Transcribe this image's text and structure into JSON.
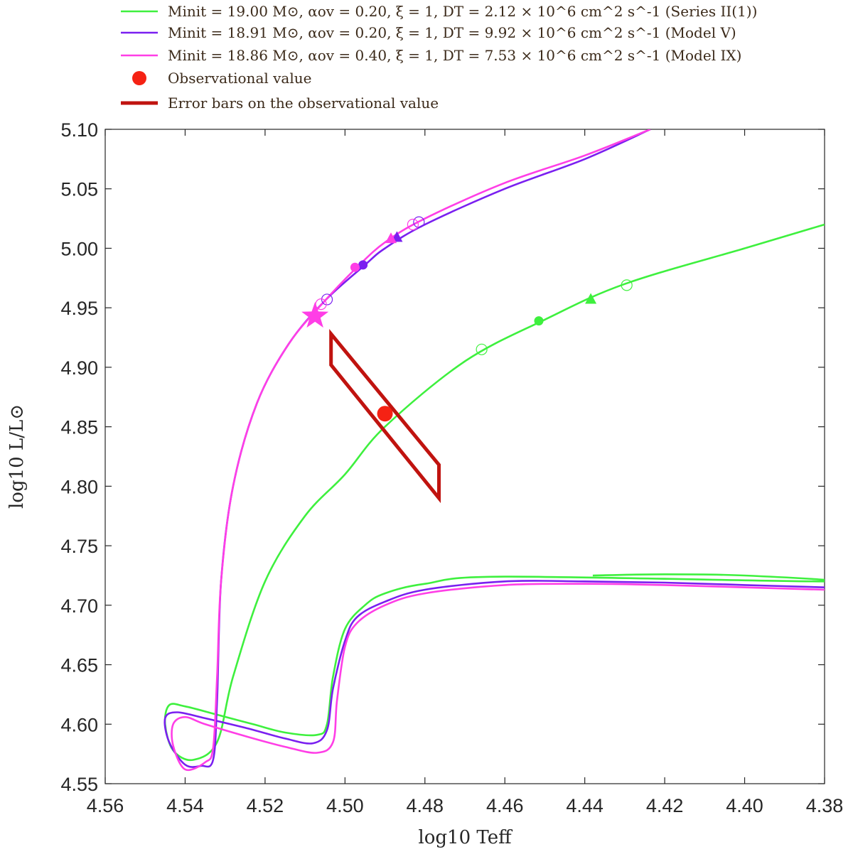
{
  "chart_data": {
    "type": "line",
    "xlabel": "log10 Teff",
    "ylabel": "log10 L/L⊙",
    "xlim": [
      4.56,
      4.38
    ],
    "ylim": [
      4.55,
      5.1
    ],
    "x_reversed": true,
    "xticks": [
      "4.56",
      "4.54",
      "4.52",
      "4.50",
      "4.48",
      "4.46",
      "4.44",
      "4.42",
      "4.40",
      "4.38"
    ],
    "yticks": [
      "4.55",
      "4.60",
      "4.65",
      "4.70",
      "4.75",
      "4.80",
      "4.85",
      "4.90",
      "4.95",
      "5.00",
      "5.05",
      "5.10"
    ],
    "legend_position": "top",
    "series": [
      {
        "name": "Minit = 19.00 M⊙, αov = 0.20, ξ = 1, DT = 2.12 × 10^6 cm^2 s^-1 (Series II(1))",
        "color": "#3ef03e",
        "points": [
          [
            4.438,
            4.725
          ],
          [
            4.42,
            4.726
          ],
          [
            4.4,
            4.725
          ],
          [
            4.38,
            4.72
          ],
          [
            4.46,
            4.724
          ],
          [
            4.48,
            4.718
          ],
          [
            4.49,
            4.71
          ],
          [
            4.495,
            4.7
          ],
          [
            4.5,
            4.68
          ],
          [
            4.503,
            4.64
          ],
          [
            4.5045,
            4.6
          ],
          [
            4.507,
            4.591
          ],
          [
            4.515,
            4.593
          ],
          [
            4.523,
            4.6
          ],
          [
            4.532,
            4.608
          ],
          [
            4.54,
            4.615
          ],
          [
            4.544,
            4.616
          ],
          [
            4.545,
            4.6
          ],
          [
            4.543,
            4.578
          ],
          [
            4.538,
            4.57
          ],
          [
            4.532,
            4.585
          ],
          [
            4.528,
            4.64
          ],
          [
            4.52,
            4.72
          ],
          [
            4.51,
            4.775
          ],
          [
            4.5,
            4.81
          ],
          [
            4.49,
            4.85
          ],
          [
            4.47,
            4.905
          ],
          [
            4.45,
            4.94
          ],
          [
            4.43,
            4.97
          ],
          [
            4.4,
            5.0
          ],
          [
            4.38,
            5.02
          ]
        ],
        "markers": [
          {
            "shape": "open-circle",
            "x": 4.4658,
            "y": 4.915
          },
          {
            "shape": "filled-circle",
            "x": 4.4515,
            "y": 4.939
          },
          {
            "shape": "filled-triangle",
            "x": 4.4385,
            "y": 4.957
          },
          {
            "shape": "open-circle",
            "x": 4.4295,
            "y": 4.969
          }
        ]
      },
      {
        "name": "Minit = 18.91 M⊙, αov = 0.20, ξ = 1, DT = 9.92 × 10^6 cm^2 s^-1 (Model V)",
        "color": "#7a1ff0",
        "points": [
          [
            4.38,
            4.715
          ],
          [
            4.4,
            4.717
          ],
          [
            4.42,
            4.719
          ],
          [
            4.44,
            4.72
          ],
          [
            4.46,
            4.72
          ],
          [
            4.48,
            4.713
          ],
          [
            4.49,
            4.703
          ],
          [
            4.497,
            4.69
          ],
          [
            4.5,
            4.67
          ],
          [
            4.503,
            4.63
          ],
          [
            4.5045,
            4.595
          ],
          [
            4.508,
            4.584
          ],
          [
            4.515,
            4.588
          ],
          [
            4.525,
            4.597
          ],
          [
            4.535,
            4.605
          ],
          [
            4.542,
            4.61
          ],
          [
            4.545,
            4.605
          ],
          [
            4.544,
            4.585
          ],
          [
            4.54,
            4.566
          ],
          [
            4.536,
            4.565
          ],
          [
            4.533,
            4.57
          ],
          [
            4.532,
            4.62
          ],
          [
            4.531,
            4.72
          ],
          [
            4.528,
            4.8
          ],
          [
            4.522,
            4.87
          ],
          [
            4.514,
            4.92
          ],
          [
            4.505,
            4.956
          ],
          [
            4.495,
            4.986
          ],
          [
            4.49,
            5.0
          ],
          [
            4.48,
            5.02
          ],
          [
            4.46,
            5.05
          ],
          [
            4.44,
            5.075
          ],
          [
            4.4236,
            5.1
          ]
        ],
        "markers": [
          {
            "shape": "filled-circle",
            "x": 4.4955,
            "y": 4.986
          },
          {
            "shape": "filled-triangle",
            "x": 4.487,
            "y": 5.009
          },
          {
            "shape": "open-circle",
            "x": 4.4815,
            "y": 5.022
          },
          {
            "shape": "open-circle",
            "x": 4.5045,
            "y": 4.957
          }
        ]
      },
      {
        "name": "Minit = 18.86 M⊙, αov = 0.40, ξ = 1, DT = 7.53 × 10^6 cm^2 s^-1 (Model IX)",
        "color": "#ff3ee6",
        "points": [
          [
            4.38,
            4.713
          ],
          [
            4.4,
            4.715
          ],
          [
            4.42,
            4.717
          ],
          [
            4.44,
            4.718
          ],
          [
            4.46,
            4.717
          ],
          [
            4.48,
            4.71
          ],
          [
            4.49,
            4.7
          ],
          [
            4.497,
            4.685
          ],
          [
            4.5,
            4.665
          ],
          [
            4.502,
            4.62
          ],
          [
            4.503,
            4.585
          ],
          [
            4.507,
            4.576
          ],
          [
            4.515,
            4.581
          ],
          [
            4.525,
            4.59
          ],
          [
            4.535,
            4.6
          ],
          [
            4.54,
            4.606
          ],
          [
            4.543,
            4.6
          ],
          [
            4.543,
            4.582
          ],
          [
            4.54,
            4.562
          ],
          [
            4.535,
            4.568
          ],
          [
            4.533,
            4.58
          ],
          [
            4.532,
            4.64
          ],
          [
            4.531,
            4.72
          ],
          [
            4.528,
            4.8
          ],
          [
            4.522,
            4.87
          ],
          [
            4.514,
            4.92
          ],
          [
            4.505,
            4.956
          ],
          [
            4.497,
            4.984
          ],
          [
            4.49,
            5.005
          ],
          [
            4.48,
            5.025
          ],
          [
            4.46,
            5.055
          ],
          [
            4.44,
            5.078
          ],
          [
            4.4236,
            5.1
          ]
        ],
        "markers": [
          {
            "shape": "filled-star",
            "x": 4.5075,
            "y": 4.943
          },
          {
            "shape": "filled-circle",
            "x": 4.4975,
            "y": 4.984
          },
          {
            "shape": "filled-triangle",
            "x": 4.4885,
            "y": 5.008
          },
          {
            "shape": "open-circle",
            "x": 4.483,
            "y": 5.02
          },
          {
            "shape": "open-circle",
            "x": 4.506,
            "y": 4.953
          }
        ]
      }
    ],
    "observation": {
      "name": "Observational value",
      "color": "#f52214",
      "x": 4.49,
      "y": 4.861
    },
    "error_box": {
      "name": "Error bars on the observational value",
      "color": "#c0130f",
      "corners": [
        [
          4.5035,
          4.928
        ],
        [
          4.4765,
          4.818
        ],
        [
          4.4765,
          4.79
        ],
        [
          4.5035,
          4.902
        ]
      ]
    }
  },
  "legend": {
    "items": [
      {
        "key": "series-ii",
        "text": "Minit = 19.00 M⊙, αov = 0.20, ξ = 1, DT = 2.12 × 10^6 cm^2 s^-1 (Series II(1))"
      },
      {
        "key": "model-v",
        "text": "Minit = 18.91 M⊙, αov = 0.20, ξ = 1, DT = 9.92 × 10^6 cm^2 s^-1 (Model V)"
      },
      {
        "key": "model-ix",
        "text": "Minit = 18.86 M⊙, αov = 0.40, ξ = 1, DT = 7.53 × 10^6 cm^2 s^-1 (Model IX)"
      },
      {
        "key": "obs",
        "text": "Observational value"
      },
      {
        "key": "err",
        "text": "Error bars on the observational value"
      }
    ]
  }
}
